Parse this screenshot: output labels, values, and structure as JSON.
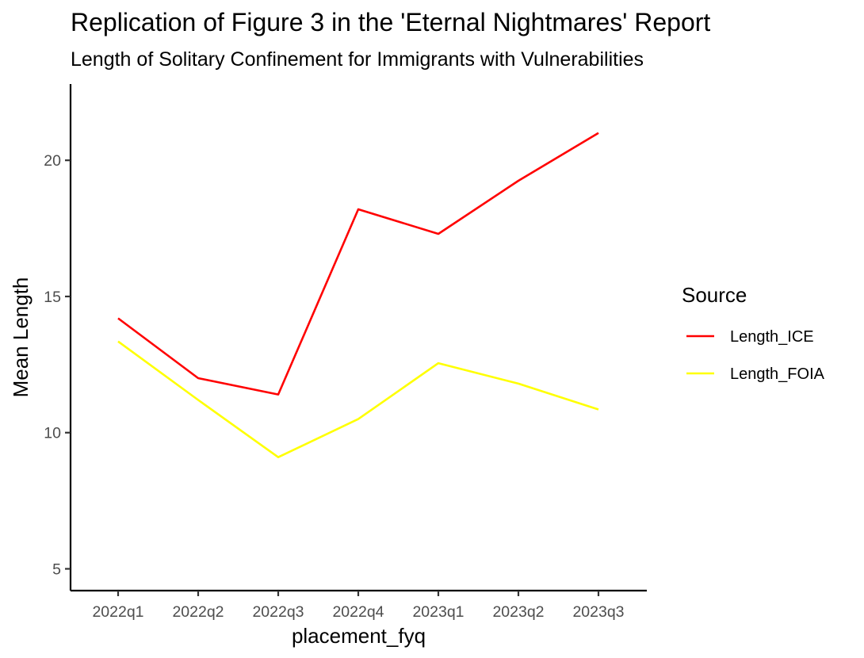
{
  "chart_data": {
    "type": "line",
    "title": "Replication of Figure 3 in the 'Eternal Nightmares' Report",
    "subtitle": "Length of Solitary Confinement for Immigrants with Vulnerabilities",
    "xlabel": "placement_fyq",
    "ylabel": "Mean Length",
    "categories": [
      "2022q1",
      "2022q2",
      "2022q3",
      "2022q4",
      "2023q1",
      "2023q2",
      "2023q3"
    ],
    "ylim": [
      4.2,
      22.8
    ],
    "yticks": [
      5,
      10,
      15,
      20
    ],
    "grid": false,
    "legend": {
      "title": "Source",
      "placement": "right"
    },
    "series": [
      {
        "name": "Length_ICE",
        "color": "#ff0000",
        "values": [
          14.2,
          12.0,
          11.4,
          18.2,
          17.3,
          19.25,
          21.0
        ]
      },
      {
        "name": "Length_FOIA",
        "color": "#ffff00",
        "values": [
          13.35,
          11.2,
          9.1,
          10.5,
          12.55,
          11.8,
          10.85
        ]
      }
    ]
  }
}
